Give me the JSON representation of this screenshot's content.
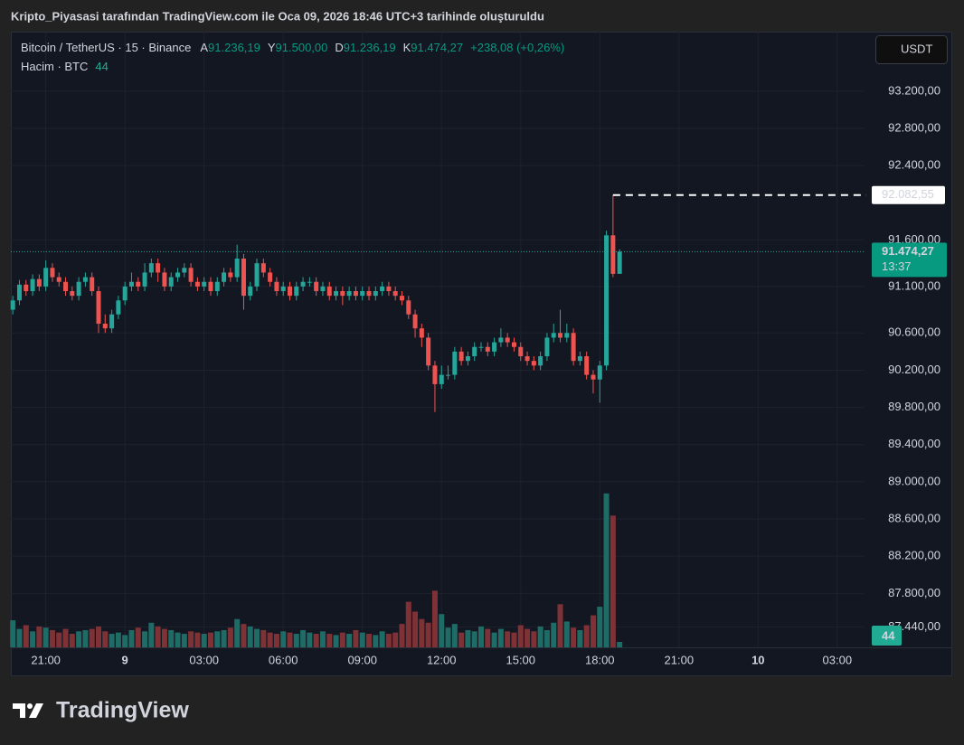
{
  "chart_data": {
    "type": "candlestick",
    "title": "Kripto_Piyasasi tarafından TradingView.com ile Oca 09, 2026 18:46 UTC+3 tarihinde oluşturuldu",
    "symbol": "Bitcoin / TetherUS · 15 · Binance",
    "ohlc_legend": [
      {
        "key": "A",
        "label": "91.236,19"
      },
      {
        "key": "Y",
        "label": "91.500,00"
      },
      {
        "key": "D",
        "label": "91.236,19"
      },
      {
        "key": "K",
        "label": "91.474,27"
      }
    ],
    "change": "+238,08 (+0,26%)",
    "volume_legend": "Hacim · BTC",
    "currency": "USDT",
    "logo": "TradingView",
    "up_color": "#26a69a",
    "down_color": "#ef5350",
    "grid": true,
    "open": [
      90850,
      90950,
      91120,
      91050,
      91180,
      91100,
      91300,
      91200,
      91150,
      91050,
      91000,
      91150,
      91200,
      91050,
      90700,
      90650,
      90800,
      90950,
      91100,
      91150,
      91100,
      91250,
      91350,
      91250,
      91100,
      91200,
      91250,
      91300,
      91150,
      91100,
      91150,
      91050,
      91150,
      91250,
      91200,
      91400,
      91000,
      91100,
      91350,
      91250,
      91150,
      91050,
      91100,
      91000,
      91100,
      91150,
      91150,
      91050,
      91100,
      91000,
      91050,
      91000,
      91050,
      91000,
      91050,
      91000,
      91050,
      91100,
      91050,
      91000,
      90950,
      90800,
      90650,
      90550,
      90250,
      90050,
      90150,
      90150,
      90400,
      90300,
      90350,
      90450,
      90450,
      90400,
      90500,
      90550,
      90500,
      90450,
      90350,
      90300,
      90250,
      90350,
      90550,
      90600,
      90550,
      90600,
      90300,
      90350,
      90150,
      90100,
      90250,
      91650,
      91236.19
    ],
    "high": [
      91000,
      91170,
      91170,
      91230,
      91230,
      91380,
      91350,
      91250,
      91200,
      91100,
      91200,
      91250,
      91250,
      91100,
      90800,
      90850,
      91000,
      91150,
      91250,
      91200,
      91350,
      91400,
      91400,
      91300,
      91250,
      91300,
      91350,
      91350,
      91200,
      91200,
      91200,
      91200,
      91300,
      91300,
      91550,
      91450,
      91150,
      91400,
      91400,
      91300,
      91200,
      91150,
      91150,
      91150,
      91200,
      91200,
      91200,
      91150,
      91150,
      91100,
      91100,
      91100,
      91100,
      91100,
      91100,
      91100,
      91150,
      91150,
      91100,
      91050,
      91000,
      90850,
      90700,
      90600,
      90300,
      90250,
      90250,
      90450,
      90450,
      90400,
      90500,
      90500,
      90500,
      90550,
      90650,
      90600,
      90550,
      90500,
      90400,
      90350,
      90400,
      90600,
      90700,
      90850,
      90700,
      90650,
      90400,
      90400,
      90200,
      90300,
      91700,
      92082.55,
      91500
    ],
    "low": [
      90800,
      90900,
      91000,
      91000,
      91050,
      91050,
      91150,
      91100,
      91000,
      90950,
      90950,
      91100,
      91000,
      90600,
      90600,
      90600,
      90750,
      90900,
      91050,
      91050,
      91050,
      91200,
      91150,
      91050,
      91050,
      91150,
      91200,
      91100,
      91050,
      91050,
      91000,
      91000,
      91100,
      91150,
      91150,
      90850,
      90950,
      91050,
      91200,
      91100,
      91000,
      91000,
      90950,
      90950,
      91050,
      91100,
      91000,
      91000,
      90950,
      90950,
      90900,
      90950,
      90950,
      90950,
      90950,
      90950,
      91000,
      91000,
      90950,
      90900,
      90750,
      90550,
      90450,
      90200,
      89750,
      90000,
      90100,
      90100,
      90250,
      90250,
      90300,
      90400,
      90350,
      90350,
      90450,
      90450,
      90400,
      90300,
      90250,
      90200,
      90200,
      90300,
      90500,
      90500,
      90500,
      90250,
      90250,
      90100,
      89950,
      89850,
      90200,
      91200,
      91236.19
    ],
    "close": [
      90950,
      91120,
      91050,
      91180,
      91100,
      91300,
      91200,
      91150,
      91050,
      91000,
      91150,
      91200,
      91050,
      90700,
      90650,
      90800,
      90950,
      91100,
      91150,
      91100,
      91250,
      91350,
      91250,
      91100,
      91200,
      91250,
      91300,
      91150,
      91100,
      91150,
      91050,
      91150,
      91250,
      91200,
      91400,
      91000,
      91100,
      91350,
      91250,
      91150,
      91050,
      91100,
      91000,
      91100,
      91150,
      91150,
      91050,
      91100,
      91000,
      91050,
      91000,
      91050,
      91000,
      91050,
      91000,
      91050,
      91100,
      91050,
      91000,
      90950,
      90800,
      90650,
      90550,
      90250,
      90050,
      90150,
      90150,
      90400,
      90300,
      90350,
      90450,
      90450,
      90400,
      90500,
      90550,
      90500,
      90450,
      90350,
      90300,
      90250,
      90350,
      90550,
      90600,
      90550,
      90600,
      90300,
      90350,
      90150,
      90100,
      90250,
      91650,
      91236.19,
      91474.27
    ],
    "volume": {
      "axis": "y2",
      "up_color": "#1f6b66",
      "down_color": "#7e3236",
      "values": [
        220,
        150,
        180,
        130,
        170,
        160,
        140,
        120,
        150,
        110,
        130,
        140,
        150,
        170,
        130,
        110,
        120,
        100,
        140,
        160,
        130,
        200,
        170,
        150,
        140,
        120,
        110,
        130,
        120,
        110,
        120,
        130,
        140,
        160,
        230,
        190,
        170,
        150,
        140,
        120,
        110,
        130,
        120,
        110,
        140,
        120,
        110,
        130,
        110,
        100,
        120,
        110,
        140,
        120,
        110,
        100,
        130,
        110,
        120,
        190,
        370,
        290,
        230,
        200,
        460,
        270,
        160,
        190,
        120,
        140,
        130,
        170,
        150,
        120,
        150,
        130,
        120,
        180,
        150,
        130,
        170,
        140,
        200,
        350,
        210,
        160,
        140,
        180,
        260,
        330,
        1250,
        1070,
        44
      ]
    },
    "xlim": [
      -0.3,
      129
    ],
    "xticks": [
      {
        "value": 5,
        "label": "21:00"
      },
      {
        "value": 17,
        "label": "9"
      },
      {
        "value": 29,
        "label": "03:00"
      },
      {
        "value": 41,
        "label": "06:00"
      },
      {
        "value": 53,
        "label": "09:00"
      },
      {
        "value": 65,
        "label": "12:00"
      },
      {
        "value": 77,
        "label": "15:00"
      },
      {
        "value": 89,
        "label": "18:00"
      },
      {
        "value": 101,
        "label": "21:00"
      },
      {
        "value": 113,
        "label": "10"
      },
      {
        "value": 125,
        "label": "03:00"
      }
    ],
    "ylim": [
      87220,
      93840
    ],
    "yticks": [
      {
        "value": 93200,
        "label": "93.200,00"
      },
      {
        "value": 92800,
        "label": "92.800,00"
      },
      {
        "value": 92400,
        "label": "92.400,00"
      },
      {
        "value": 91600,
        "label": "91.600,00"
      },
      {
        "value": 91100,
        "label": "91.100,00"
      },
      {
        "value": 90600,
        "label": "90.600,00"
      },
      {
        "value": 90200,
        "label": "90.200,00"
      },
      {
        "value": 89800,
        "label": "89.800,00"
      },
      {
        "value": 89400,
        "label": "89.400,00"
      },
      {
        "value": 89000,
        "label": "89.000,00"
      },
      {
        "value": 88600,
        "label": "88.600,00"
      },
      {
        "value": 88200,
        "label": "88.200,00"
      },
      {
        "value": 87800,
        "label": "87.800,00"
      },
      {
        "value": 87440,
        "label": "87.440,00"
      }
    ],
    "y2lim": [
      0,
      5000
    ],
    "high_marker": {
      "value": 92082.55,
      "label": "92.082,55"
    },
    "last_price": {
      "value": 91474.27,
      "label": "91.474,27",
      "countdown": "13:37"
    }
  }
}
